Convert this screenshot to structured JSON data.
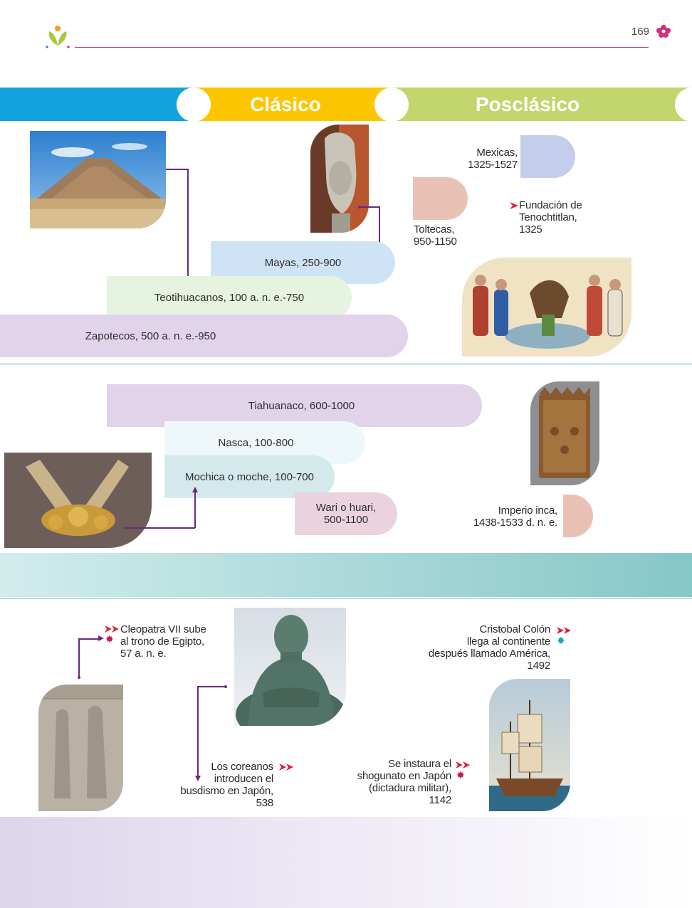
{
  "header": {
    "page_number": "169"
  },
  "eras": {
    "classic": "Clásico",
    "postclassic": "Posclásico"
  },
  "mesoamerica": {
    "mexicas": "Mexicas,\n1325-1527",
    "toltecas": "Toltecas,\n950-1150",
    "fundacion": "Fundación de\nTenochtitlan,\n1325",
    "mayas": "Mayas, 250-900",
    "teotihuacanos": "Teotihuacanos, 100 a. n. e.-750",
    "zapotecos": "Zapotecos, 500 a. n. e.-950"
  },
  "andes": {
    "tiahuanaco": "Tiahuanaco, 600-1000",
    "nasca": "Nasca, 100-800",
    "mochica": "Mochica o moche, 100-700",
    "wari": "Wari o huari,\n500-1100",
    "inca": "Imperio inca,\n1438-1533 d. n. e."
  },
  "world": {
    "cleopatra": "Cleopatra VII sube\nal trono de Egipto,\n57 a. n. e.",
    "colon": "Cristobal Colón\nllega al continente\ndespués llamado América,\n1492",
    "coreanos": "Los coreanos\nintroducen el\nbusdismo en Japón,\n538",
    "shogunato": "Se instaura el\nshogunato en Japón\n(dictadura militar),\n1142"
  },
  "colors": {
    "band_blue": "#15a3df",
    "band_yellow": "#fdc500",
    "band_green": "#c2d66d",
    "mayas_bar": "#cfe3f6",
    "teoti_bar": "#e6f3df",
    "zapo_bar": "#e0d3ea",
    "tiahuanaco_bar": "#e0d3ea",
    "nasca_bar": "#eef7f9",
    "mochica_bar": "#d3e9ec",
    "wari_bar": "#ead3df",
    "mexicas_tab": "#c5cdec",
    "toltecas_tab": "#eac1b5",
    "inca_tab": "#eac1b5",
    "teal_band": "#86c7c8",
    "accent_line": "#b0387a"
  },
  "icons": {
    "logo": "sprout-logo-icon",
    "page_flower": "flower-icon",
    "event_marker": "double-arrow-icon",
    "asterisk": "asterisk-icon"
  }
}
